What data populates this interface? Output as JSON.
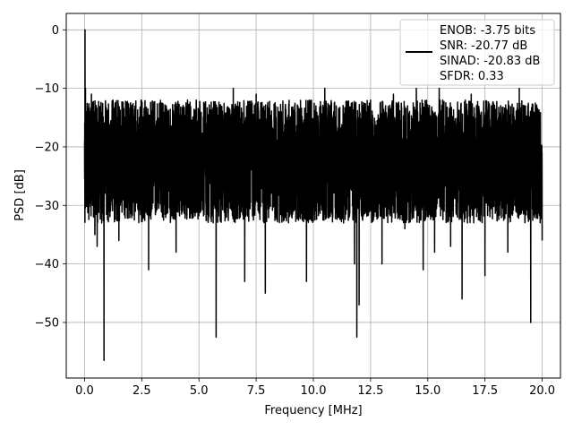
{
  "chart_data": {
    "type": "line",
    "xlabel": "Frequency [MHz]",
    "ylabel": "PSD [dB]",
    "xlim": [
      -0.8,
      20.8
    ],
    "ylim": [
      -59.5,
      2.8
    ],
    "xticks": [
      0.0,
      2.5,
      5.0,
      7.5,
      10.0,
      12.5,
      15.0,
      17.5,
      20.0
    ],
    "xtick_labels": [
      "0.0",
      "2.5",
      "5.0",
      "7.5",
      "10.0",
      "12.5",
      "15.0",
      "17.5",
      "20.0"
    ],
    "yticks": [
      0,
      -10,
      -20,
      -30,
      -40,
      -50
    ],
    "ytick_labels": [
      "0",
      "−10",
      "−20",
      "−30",
      "−40",
      "−50"
    ],
    "grid": true,
    "legend_position": "top-right",
    "legend_lines": [
      "ENOB: -3.75 bits",
      "SNR: -20.77 dB",
      "SINAD: -20.83 dB",
      "SFDR: 0.33"
    ],
    "line_color": "#000000",
    "noise_floor_db": -20,
    "series": [
      {
        "x": [
          0.0,
          0.02,
          0.04,
          0.06,
          0.08,
          0.1,
          0.12,
          0.15,
          0.2,
          0.25,
          0.3,
          0.35,
          0.4,
          0.45,
          0.5,
          0.55,
          0.6,
          0.65,
          0.7,
          0.75,
          0.8,
          0.85,
          0.9,
          1.0,
          1.5,
          2.0,
          2.8,
          3.5,
          4.0,
          4.5,
          5.0,
          5.75,
          6.5,
          7.0,
          7.5,
          7.9,
          8.5,
          9.0,
          9.7,
          10.5,
          11.0,
          11.8,
          11.9,
          12.0,
          12.5,
          13.0,
          13.5,
          14.0,
          14.5,
          14.8,
          15.0,
          15.3,
          15.5,
          16.0,
          16.5,
          16.9,
          17.5,
          18.0,
          18.5,
          19.0,
          19.5,
          19.9,
          20.0
        ],
        "y": [
          -19,
          0,
          -10,
          -25,
          -14,
          -20,
          -13,
          -27,
          -23,
          -18,
          -11,
          -30,
          -22,
          -35,
          -14,
          -37,
          -20,
          -28,
          -13,
          -33,
          -22,
          -56.5,
          -19,
          -15,
          -36,
          -29,
          -41,
          -14,
          -38,
          -12,
          -25,
          -52.5,
          -10,
          -43,
          -11,
          -45,
          -14,
          -24,
          -43,
          -10,
          -13,
          -40,
          -52.5,
          -47,
          -12,
          -40,
          -11,
          -34,
          -10,
          -41,
          -13,
          -38,
          -10,
          -37,
          -46,
          -11,
          -42,
          -14,
          -38,
          -10,
          -50,
          -15,
          -36
        ]
      }
    ]
  }
}
